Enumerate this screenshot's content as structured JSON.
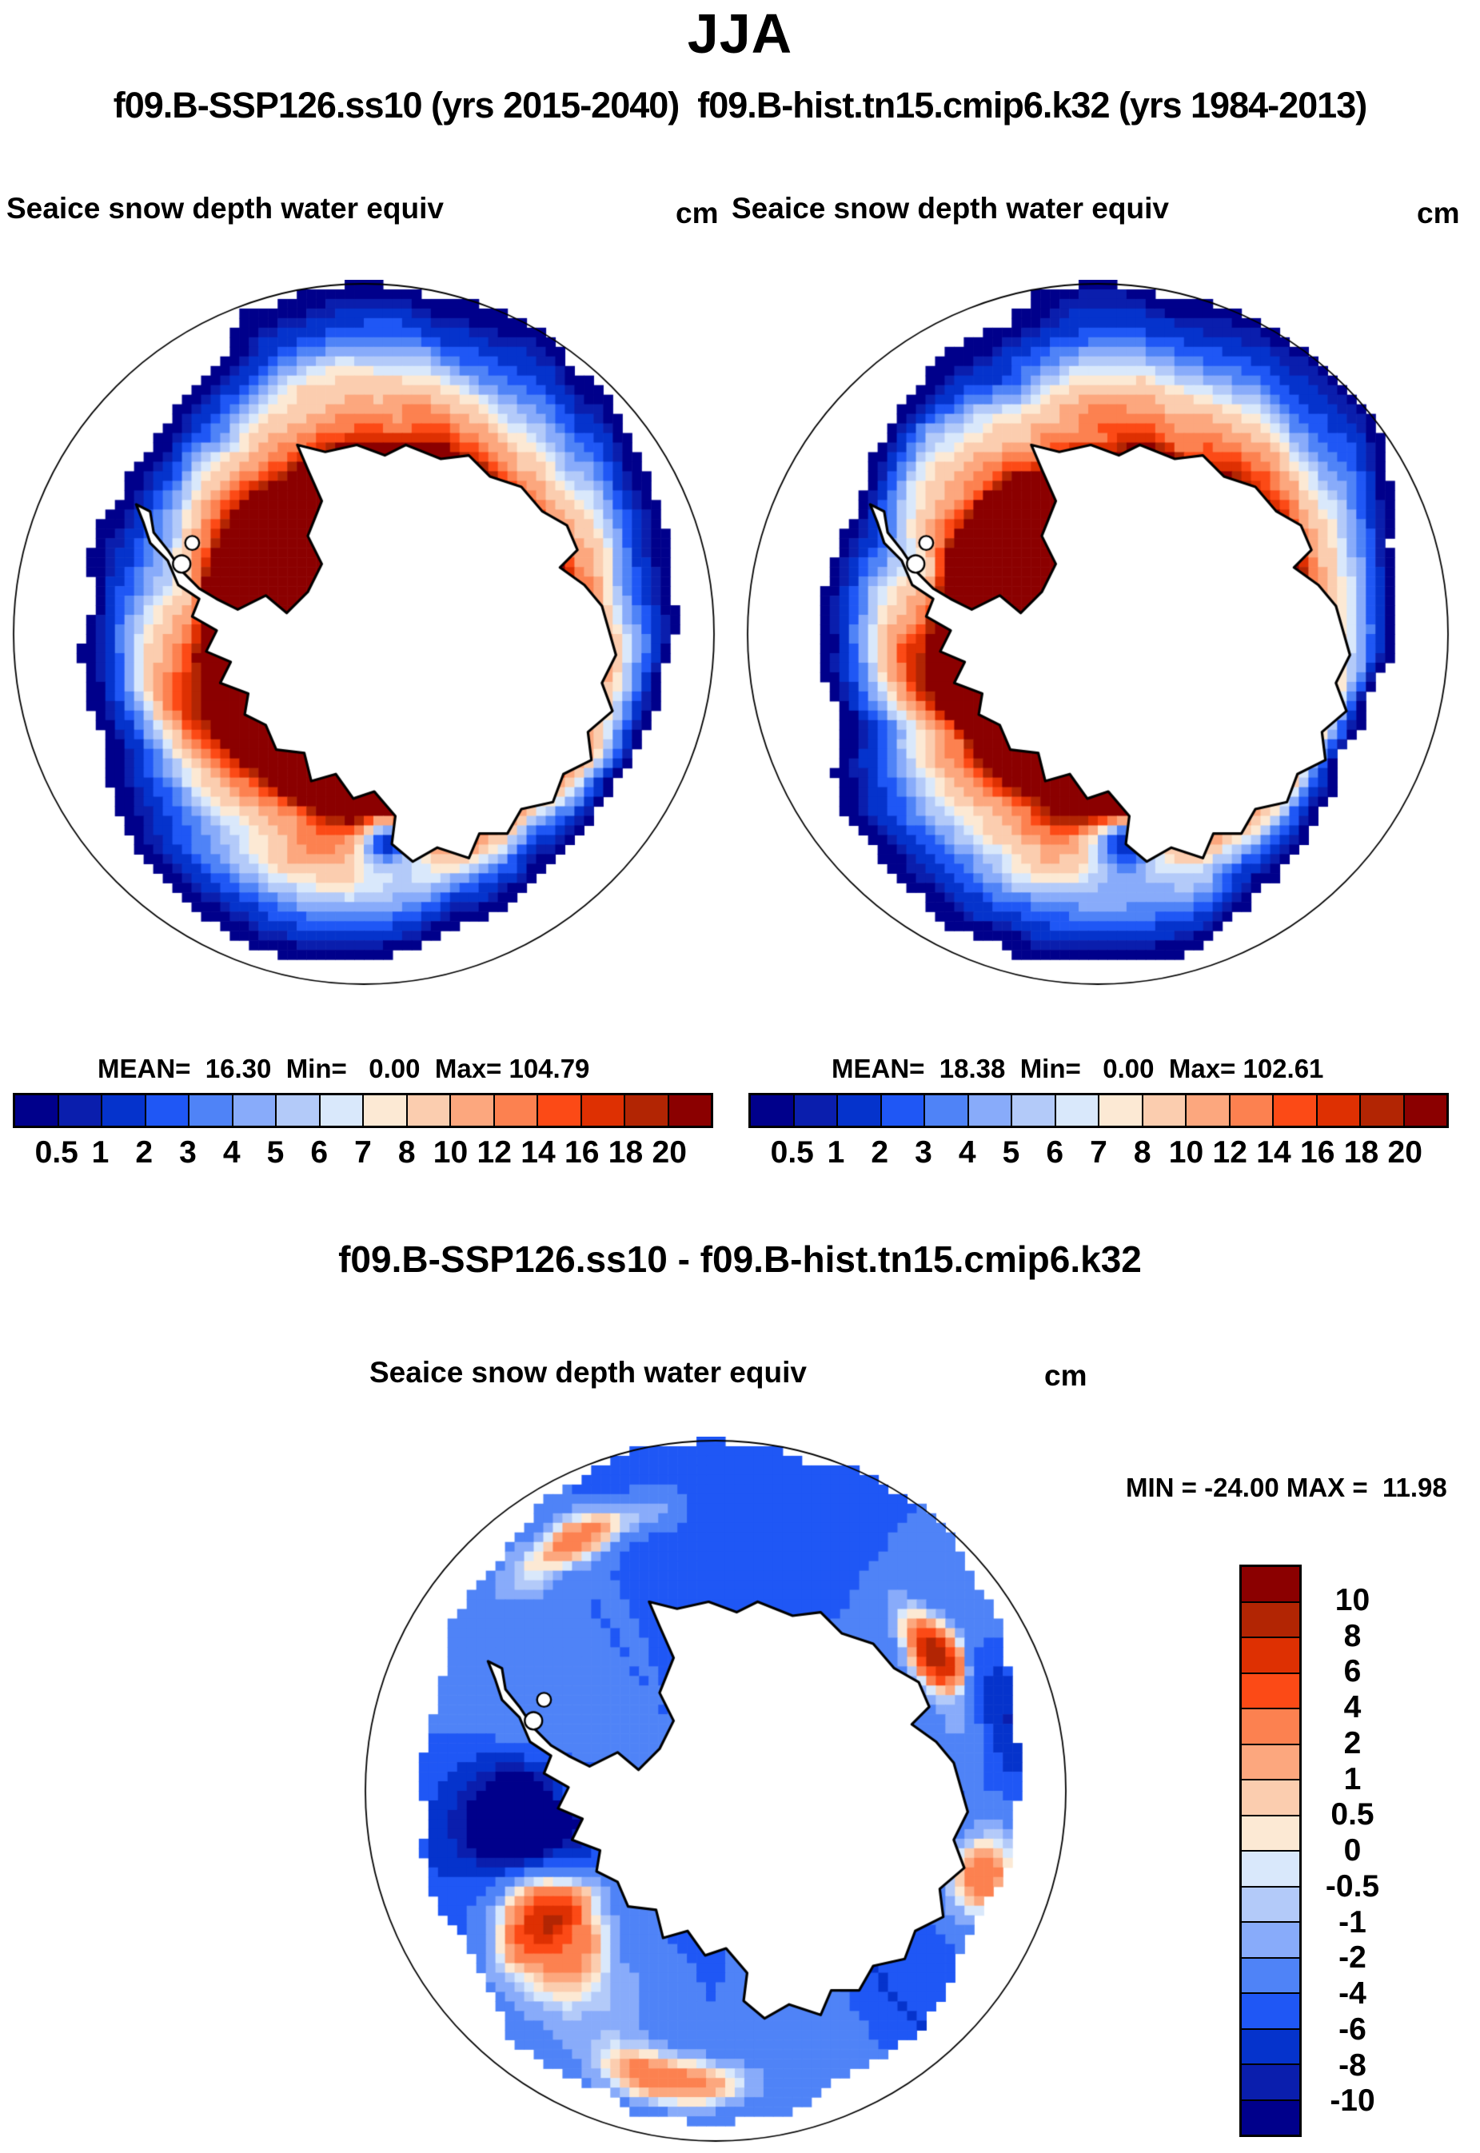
{
  "page_title": "JJA",
  "subtitle": "f09.B-SSP126.ss10 (yrs 2015-2040)  f09.B-hist.tn15.cmip6.k32 (yrs 1984-2013)",
  "panels": {
    "left": {
      "field_label": "Seaice snow depth water equiv",
      "units": "cm",
      "stats": "MEAN=  16.30  Min=   0.00  Max= 104.79"
    },
    "right": {
      "field_label": "Seaice snow depth water equiv",
      "units": "cm",
      "stats": "MEAN=  18.38  Min=   0.00  Max= 102.61"
    }
  },
  "diff": {
    "title": "f09.B-SSP126.ss10 - f09.B-hist.tn15.cmip6.k32",
    "field_label": "Seaice snow depth water equiv",
    "units": "cm",
    "stats": "MIN = -24.00 MAX =  11.98"
  },
  "colorbar": {
    "tick_labels": [
      "0.5",
      "1",
      "2",
      "3",
      "4",
      "5",
      "6",
      "7",
      "8",
      "10",
      "12",
      "14",
      "16",
      "18",
      "20"
    ],
    "colors": [
      "#00008B",
      "#0A1EAD",
      "#0533CC",
      "#1F57F5",
      "#4F83F7",
      "#88ABFA",
      "#B3CAF9",
      "#D9E8FB",
      "#FCE9D4",
      "#FBCDAF",
      "#FCA77E",
      "#FC8150",
      "#FC4A16",
      "#DE3002",
      "#B22503",
      "#8B0000"
    ]
  },
  "diff_colorbar": {
    "tick_labels": [
      "10",
      "8",
      "6",
      "4",
      "2",
      "1",
      "0.5",
      "0",
      "-0.5",
      "-1",
      "-2",
      "-4",
      "-6",
      "-8",
      "-10"
    ],
    "colors": [
      "#8B0000",
      "#B22503",
      "#DE3002",
      "#FC4A16",
      "#FC8150",
      "#FCA77E",
      "#FBCDAF",
      "#FCE9D4",
      "#D9E8FB",
      "#B3CAF9",
      "#88ABFA",
      "#4F83F7",
      "#1F57F5",
      "#0533CC",
      "#0A1EAD",
      "#00008B"
    ]
  },
  "chart_data": [
    {
      "type": "heatmap",
      "panel": "left",
      "title": "Seaice snow depth water equiv",
      "run": "f09.B-SSP126.ss10",
      "years": "2015-2040",
      "season": "JJA",
      "units": "cm",
      "projection": "south-polar-stereographic",
      "mean": 16.3,
      "min": 0.0,
      "max": 104.79,
      "levels": [
        0.5,
        1,
        2,
        3,
        4,
        5,
        6,
        7,
        8,
        10,
        12,
        14,
        16,
        18,
        20
      ],
      "legend_position": "below"
    },
    {
      "type": "heatmap",
      "panel": "right",
      "title": "Seaice snow depth water equiv",
      "run": "f09.B-hist.tn15.cmip6.k32",
      "years": "1984-2013",
      "season": "JJA",
      "units": "cm",
      "projection": "south-polar-stereographic",
      "mean": 18.38,
      "min": 0.0,
      "max": 102.61,
      "levels": [
        0.5,
        1,
        2,
        3,
        4,
        5,
        6,
        7,
        8,
        10,
        12,
        14,
        16,
        18,
        20
      ],
      "legend_position": "below"
    },
    {
      "type": "heatmap",
      "panel": "difference",
      "title": "Seaice snow depth water equiv",
      "expression": "f09.B-SSP126.ss10 - f09.B-hist.tn15.cmip6.k32",
      "season": "JJA",
      "units": "cm",
      "projection": "south-polar-stereographic",
      "min": -24.0,
      "max": 11.98,
      "levels": [
        -10,
        -8,
        -6,
        -4,
        -2,
        -1,
        -0.5,
        0,
        0.5,
        1,
        2,
        4,
        6,
        8,
        10
      ],
      "legend_position": "right"
    }
  ]
}
